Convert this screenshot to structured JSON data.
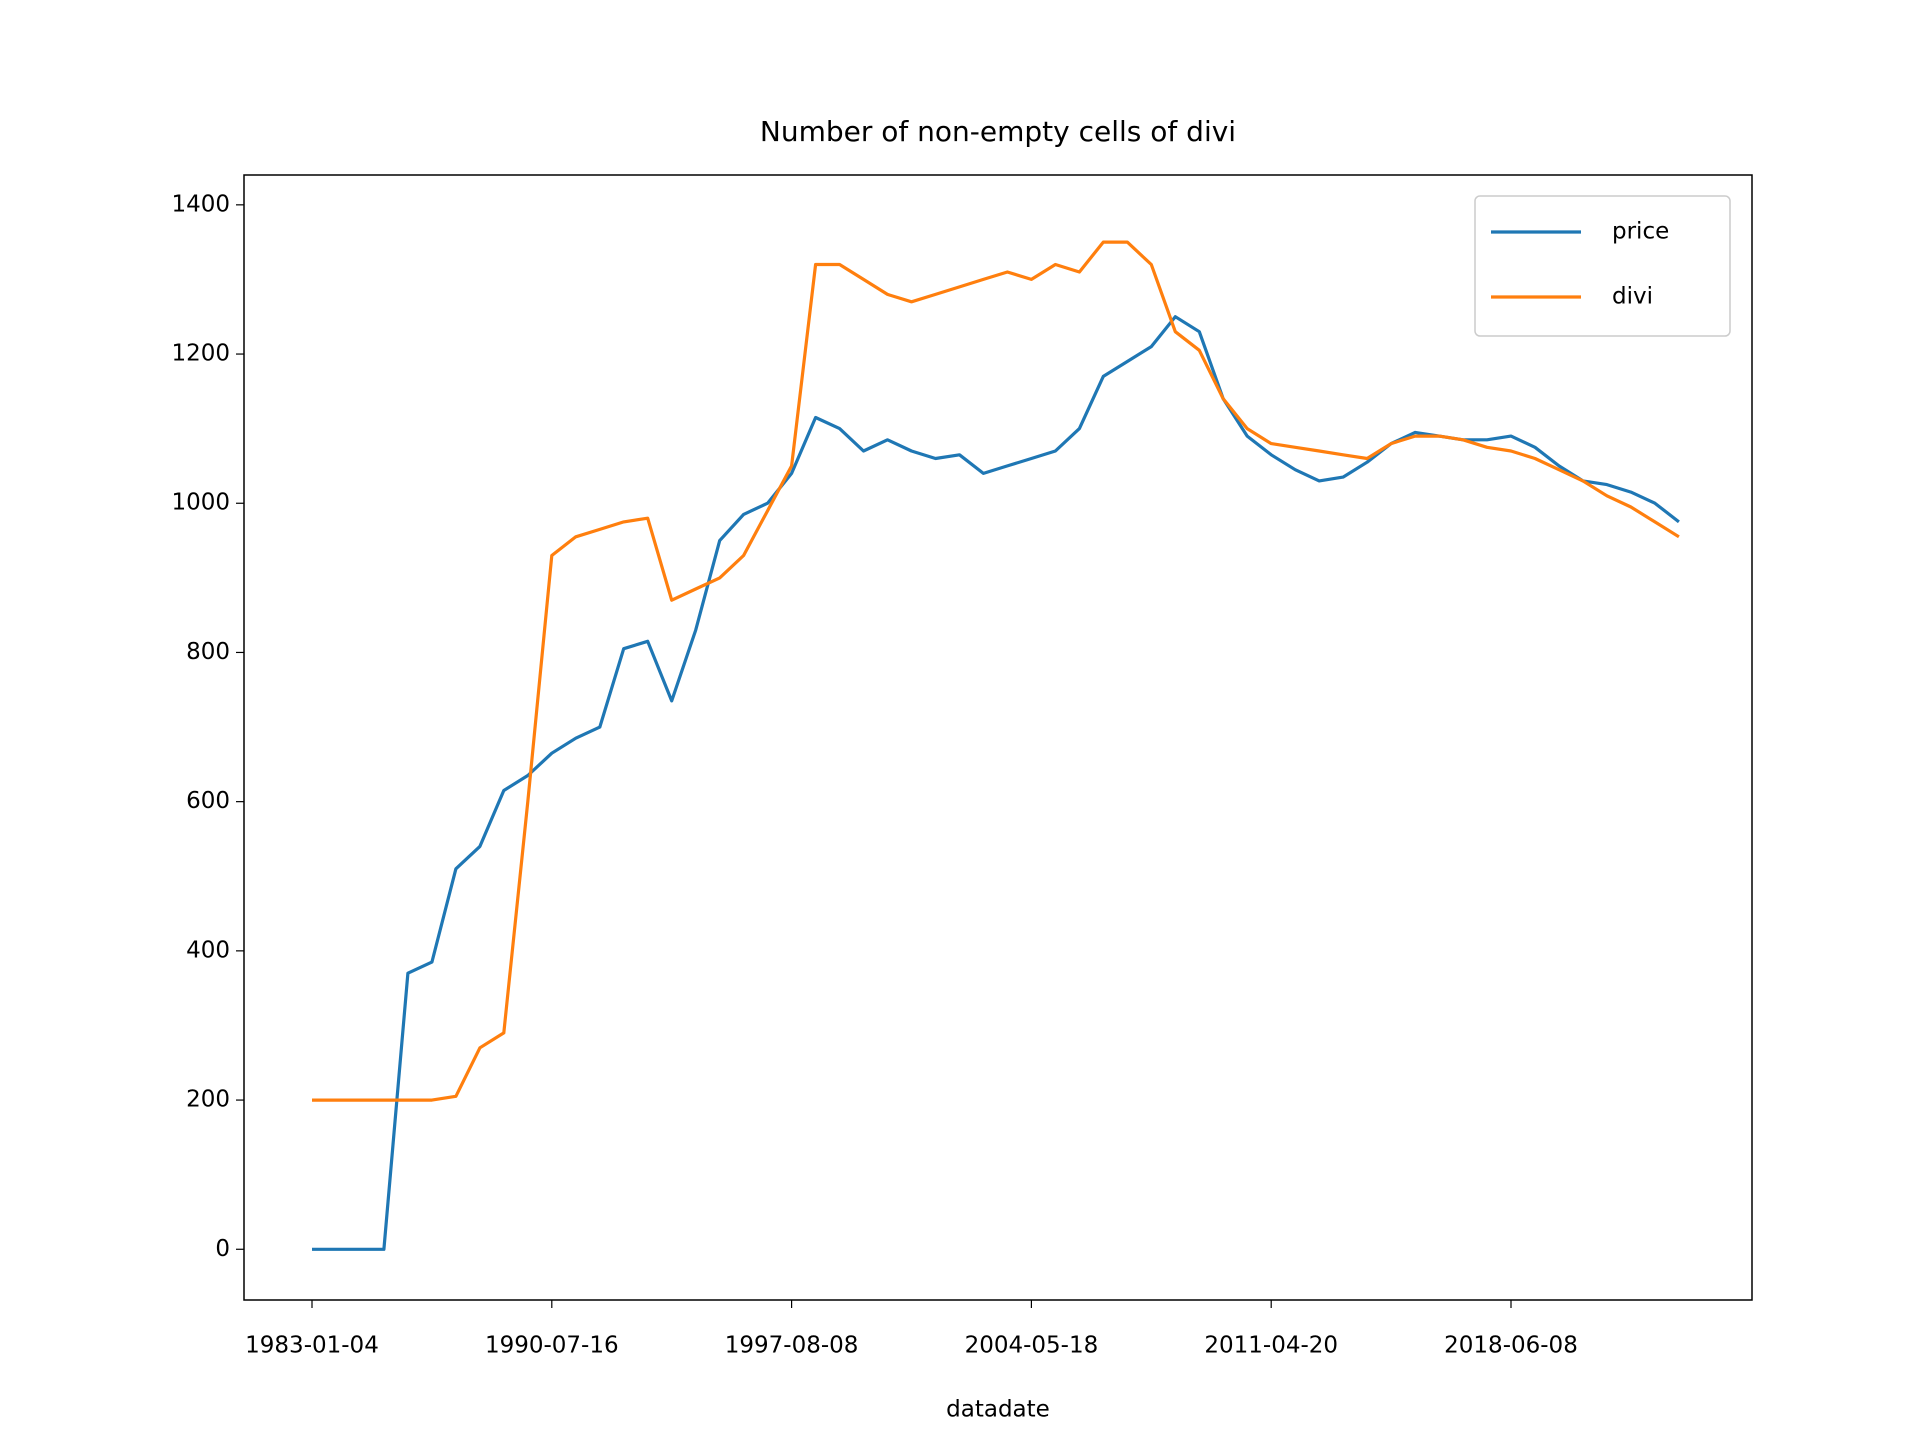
{
  "chart_data": {
    "type": "line",
    "title": "Number of non-empty cells of divi",
    "x_label": "datadate",
    "categories": [
      "1983-01-04",
      null,
      null,
      null,
      null,
      null,
      null,
      null,
      null,
      null,
      "1990-07-16",
      null,
      null,
      null,
      null,
      null,
      null,
      null,
      null,
      null,
      "1997-08-08",
      null,
      null,
      null,
      null,
      null,
      null,
      null,
      null,
      null,
      "2004-05-18",
      null,
      null,
      null,
      null,
      null,
      null,
      null,
      null,
      null,
      "2011-04-20",
      null,
      null,
      null,
      null,
      null,
      null,
      null,
      null,
      null,
      "2018-06-08",
      null,
      null,
      null,
      null,
      null,
      null,
      null
    ],
    "series": [
      {
        "name": "price",
        "color": "#1f77b4",
        "values": [
          0,
          0,
          0,
          0,
          370,
          385,
          510,
          540,
          615,
          635,
          665,
          685,
          700,
          805,
          815,
          735,
          830,
          950,
          985,
          1000,
          1040,
          1115,
          1100,
          1070,
          1085,
          1070,
          1060,
          1065,
          1040,
          1050,
          1060,
          1070,
          1100,
          1170,
          1190,
          1210,
          1250,
          1230,
          1140,
          1090,
          1065,
          1045,
          1030,
          1035,
          1055,
          1080,
          1095,
          1090,
          1085,
          1085,
          1090,
          1075,
          1050,
          1030,
          1025,
          1015,
          1000,
          975
        ]
      },
      {
        "name": "divi",
        "color": "#ff7f0e",
        "values": [
          200,
          200,
          200,
          200,
          200,
          200,
          205,
          270,
          290,
          600,
          930,
          955,
          965,
          975,
          980,
          870,
          885,
          900,
          930,
          990,
          1050,
          1320,
          1320,
          1300,
          1280,
          1270,
          1280,
          1290,
          1300,
          1310,
          1300,
          1320,
          1310,
          1350,
          1350,
          1320,
          1230,
          1205,
          1140,
          1100,
          1080,
          1075,
          1070,
          1065,
          1060,
          1080,
          1090,
          1090,
          1085,
          1075,
          1070,
          1060,
          1045,
          1030,
          1010,
          995,
          975,
          955
        ]
      }
    ],
    "ylim": [
      -68,
      1440
    ],
    "yticks": [
      0,
      200,
      400,
      600,
      800,
      1000,
      1200,
      1400
    ],
    "legend": "upper right"
  }
}
